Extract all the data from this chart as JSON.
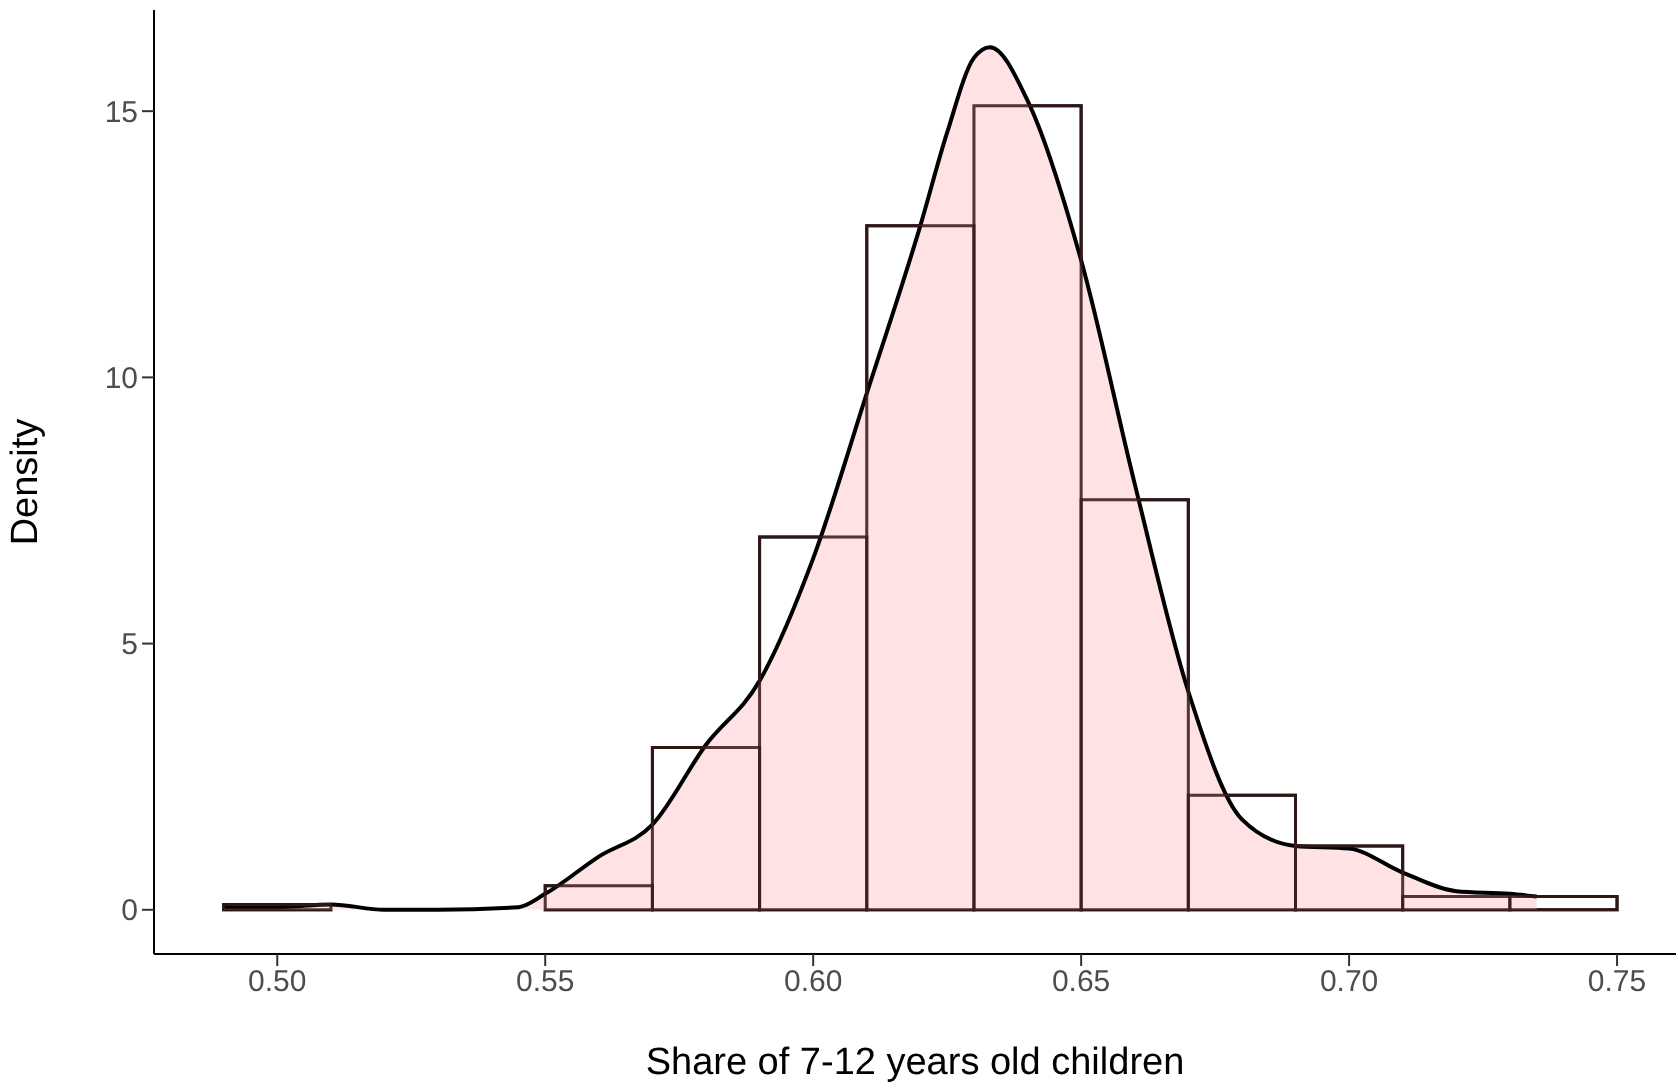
{
  "chart_data": {
    "type": "histogram",
    "xlabel": "Share of 7-12 years old children",
    "ylabel": "Density",
    "series": [
      {
        "color": "#ffffff",
        "bins": [
          0.49,
          0.51,
          0.53,
          0.55,
          0.57,
          0.59,
          0.61,
          0.63,
          0.65,
          0.67,
          0.69,
          0.71,
          0.73,
          0.75
        ],
        "values": [
          0.1,
          0,
          0,
          0.45,
          3.05,
          7.0,
          12.85,
          15.1,
          7.7,
          2.15,
          1.2,
          0.25,
          0.25
        ]
      },
      {
        "type": "area",
        "color": "#ffdfe0",
        "x": [
          0.49,
          0.5,
          0.51,
          0.52,
          0.53,
          0.545,
          0.55,
          0.56,
          0.57,
          0.58,
          0.59,
          0.6,
          0.61,
          0.62,
          0.625,
          0.63,
          0.633,
          0.64,
          0.65,
          0.66,
          0.67,
          0.68,
          0.69,
          0.7,
          0.71,
          0.72,
          0.73,
          0.735
        ],
        "values": [
          0.05,
          0.05,
          0.1,
          0,
          0,
          0.05,
          0.3,
          1.0,
          1.6,
          3.1,
          4.3,
          6.6,
          9.7,
          12.85,
          14.6,
          16.0,
          16.2,
          15.2,
          12.2,
          8.0,
          4.1,
          1.7,
          1.2,
          1.15,
          0.7,
          0.35,
          0.3,
          0.25
        ]
      }
    ],
    "xlim": [
      0.477,
      0.761
    ],
    "xticks": [
      {
        "value": 0.5,
        "label": "0.50"
      },
      {
        "value": 0.55,
        "label": "0.55"
      },
      {
        "value": 0.6,
        "label": "0.60"
      },
      {
        "value": 0.65,
        "label": "0.65"
      },
      {
        "value": 0.7,
        "label": "0.70"
      },
      {
        "value": 0.75,
        "label": "0.75"
      }
    ],
    "ylim": [
      -0.83,
      16.9
    ],
    "yticks": [
      0,
      5,
      10,
      15
    ],
    "grid": false,
    "legend": false
  }
}
